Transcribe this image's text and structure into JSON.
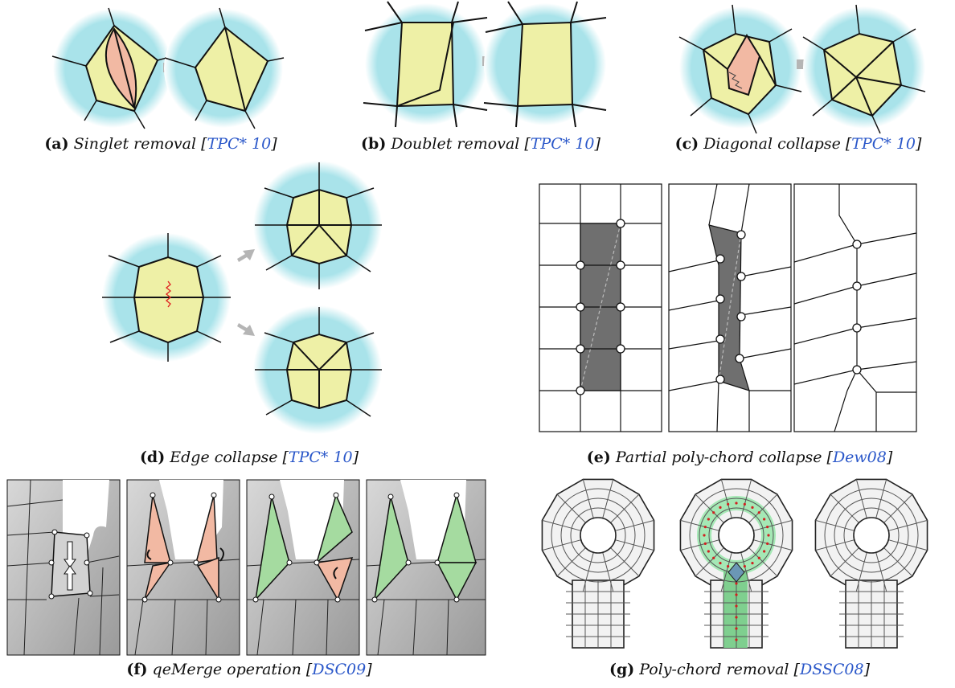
{
  "captions": {
    "a": {
      "label": "(a)",
      "text": "Singlet removal [",
      "cite": "TPC* 10",
      "close": "]"
    },
    "b": {
      "label": "(b)",
      "text": "Doublet removal [",
      "cite": "TPC* 10",
      "close": "]"
    },
    "c": {
      "label": "(c)",
      "text": "Diagonal collapse [",
      "cite": "TPC* 10",
      "close": "]"
    },
    "d": {
      "label": "(d)",
      "text": "Edge collapse [",
      "cite": "TPC* 10",
      "close": "]"
    },
    "e": {
      "label": "(e)",
      "text": "Partial poly-chord collapse [",
      "cite": "Dew08",
      "close": "]"
    },
    "f": {
      "label": "(f)",
      "text": "qeMerge operation [",
      "cite": "DSC09",
      "close": "]"
    },
    "g": {
      "label": "(g)",
      "text": "Poly-chord removal [",
      "cite": "DSSC08",
      "close": "]"
    }
  },
  "colors": {
    "cyan": "#a9e3ea",
    "yellow": "#eef0a6",
    "salmon": "#f2b9a3",
    "green": "#a5dba0",
    "gray": "#6f6f6f",
    "arrow": "#b5b5b5",
    "cite": "#2a57c9"
  }
}
